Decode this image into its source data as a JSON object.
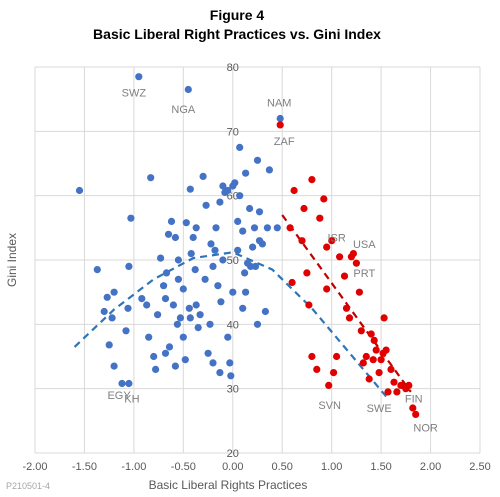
{
  "chart_data": {
    "type": "scatter",
    "title": "Figure 4",
    "subtitle": "Basic Liberal Right Practices vs. Gini Index",
    "xlabel": "Basic Liberal Rights Practices",
    "ylabel": "Gini Index",
    "xlim": [
      -2.0,
      2.5
    ],
    "ylim": [
      20,
      80
    ],
    "x_ticks": [
      -2.0,
      -1.5,
      -1.0,
      -0.5,
      0.0,
      0.5,
      1.0,
      1.5,
      2.0,
      2.5
    ],
    "x_tick_labels": [
      "-2.00",
      "-1.50",
      "-1.00",
      "-0.50",
      "0.00",
      "0.50",
      "1.00",
      "1.50",
      "2.00",
      "2.50"
    ],
    "y_ticks": [
      20,
      30,
      40,
      50,
      60,
      70,
      80
    ],
    "y_tick_labels": [
      "20",
      "30",
      "40",
      "50",
      "60",
      "70",
      "80"
    ],
    "grid": true,
    "legend": "none",
    "colors": {
      "blue": "#4472C4",
      "red": "#E00000",
      "blue_trend": "#2E75B6",
      "red_trend": "#C00000"
    },
    "series": [
      {
        "color": "blue",
        "points": [
          [
            -1.55,
            60.8
          ],
          [
            -1.37,
            48.5
          ],
          [
            -1.3,
            42.0
          ],
          [
            -1.27,
            44.2
          ],
          [
            -1.2,
            45.0
          ],
          [
            -1.22,
            41.0
          ],
          [
            -1.25,
            36.8
          ],
          [
            -1.2,
            33.5
          ],
          [
            -1.12,
            30.8
          ],
          [
            -1.05,
            30.8
          ],
          [
            -1.08,
            39.0
          ],
          [
            -1.06,
            42.5
          ],
          [
            -1.05,
            49.0
          ],
          [
            -1.03,
            56.5
          ],
          [
            -0.95,
            78.5
          ],
          [
            -0.92,
            44.0
          ],
          [
            -0.87,
            43.0
          ],
          [
            -0.85,
            38.0
          ],
          [
            -0.83,
            62.8
          ],
          [
            -0.8,
            35.0
          ],
          [
            -0.78,
            33.0
          ],
          [
            -0.76,
            41.5
          ],
          [
            -0.73,
            50.3
          ],
          [
            -0.7,
            46.0
          ],
          [
            -0.68,
            44.0
          ],
          [
            -0.68,
            35.5
          ],
          [
            -0.67,
            48.0
          ],
          [
            -0.65,
            54.0
          ],
          [
            -0.64,
            36.5
          ],
          [
            -0.62,
            56.0
          ],
          [
            -0.6,
            43.0
          ],
          [
            -0.58,
            53.5
          ],
          [
            -0.58,
            33.5
          ],
          [
            -0.56,
            40.0
          ],
          [
            -0.55,
            47.0
          ],
          [
            -0.55,
            50.0
          ],
          [
            -0.53,
            41.0
          ],
          [
            -0.5,
            45.5
          ],
          [
            -0.5,
            38.0
          ],
          [
            -0.48,
            34.5
          ],
          [
            -0.47,
            55.8
          ],
          [
            -0.45,
            76.5
          ],
          [
            -0.44,
            42.5
          ],
          [
            -0.43,
            41.0
          ],
          [
            -0.43,
            61.0
          ],
          [
            -0.42,
            51.0
          ],
          [
            -0.4,
            53.5
          ],
          [
            -0.38,
            48.5
          ],
          [
            -0.37,
            43.0
          ],
          [
            -0.37,
            55.0
          ],
          [
            -0.35,
            39.5
          ],
          [
            -0.33,
            41.5
          ],
          [
            -0.3,
            63.0
          ],
          [
            -0.28,
            47.0
          ],
          [
            -0.27,
            58.5
          ],
          [
            -0.25,
            35.5
          ],
          [
            -0.23,
            40.0
          ],
          [
            -0.22,
            52.5
          ],
          [
            -0.2,
            49.0
          ],
          [
            -0.2,
            34.0
          ],
          [
            -0.18,
            51.5
          ],
          [
            -0.17,
            55.0
          ],
          [
            -0.15,
            46.0
          ],
          [
            -0.13,
            59.0
          ],
          [
            -0.13,
            32.5
          ],
          [
            -0.12,
            43.5
          ],
          [
            -0.1,
            50.0
          ],
          [
            -0.1,
            61.5
          ],
          [
            -0.08,
            60.5
          ],
          [
            -0.05,
            60.8
          ],
          [
            -0.05,
            38.0
          ],
          [
            -0.03,
            34.0
          ],
          [
            -0.02,
            32.0
          ],
          [
            0.0,
            45.0
          ],
          [
            0.0,
            61.5
          ],
          [
            0.02,
            62.0
          ],
          [
            0.05,
            51.5
          ],
          [
            0.05,
            56.0
          ],
          [
            0.07,
            67.5
          ],
          [
            0.07,
            60.0
          ],
          [
            0.1,
            42.5
          ],
          [
            0.1,
            54.5
          ],
          [
            0.12,
            48.0
          ],
          [
            0.13,
            63.5
          ],
          [
            0.13,
            45.0
          ],
          [
            0.15,
            49.5
          ],
          [
            0.17,
            58.0
          ],
          [
            0.18,
            49.0
          ],
          [
            0.2,
            52.0
          ],
          [
            0.22,
            55.0
          ],
          [
            0.23,
            49.0
          ],
          [
            0.25,
            65.5
          ],
          [
            0.25,
            40.0
          ],
          [
            0.27,
            57.5
          ],
          [
            0.27,
            53.0
          ],
          [
            0.3,
            52.5
          ],
          [
            0.33,
            42.0
          ],
          [
            0.35,
            55.0
          ],
          [
            0.37,
            64.0
          ],
          [
            0.45,
            55.0
          ],
          [
            0.48,
            72.0
          ]
        ]
      },
      {
        "color": "red",
        "points": [
          [
            0.48,
            71.0
          ],
          [
            0.58,
            55.0
          ],
          [
            0.6,
            46.5
          ],
          [
            0.62,
            60.8
          ],
          [
            0.7,
            53.0
          ],
          [
            0.72,
            58.0
          ],
          [
            0.75,
            48.0
          ],
          [
            0.77,
            43.0
          ],
          [
            0.8,
            62.5
          ],
          [
            0.8,
            35.0
          ],
          [
            0.85,
            33.0
          ],
          [
            0.88,
            56.5
          ],
          [
            0.92,
            59.5
          ],
          [
            0.95,
            52.0
          ],
          [
            0.95,
            45.5
          ],
          [
            0.97,
            30.5
          ],
          [
            1.0,
            53.0
          ],
          [
            1.02,
            32.5
          ],
          [
            1.05,
            35.0
          ],
          [
            1.08,
            50.5
          ],
          [
            1.13,
            47.5
          ],
          [
            1.15,
            42.5
          ],
          [
            1.18,
            41.0
          ],
          [
            1.2,
            50.5
          ],
          [
            1.22,
            51.0
          ],
          [
            1.25,
            49.5
          ],
          [
            1.28,
            45.0
          ],
          [
            1.3,
            39.0
          ],
          [
            1.32,
            34.0
          ],
          [
            1.35,
            35.0
          ],
          [
            1.38,
            31.5
          ],
          [
            1.4,
            38.5
          ],
          [
            1.42,
            34.5
          ],
          [
            1.43,
            37.5
          ],
          [
            1.45,
            36.0
          ],
          [
            1.48,
            32.5
          ],
          [
            1.5,
            34.5
          ],
          [
            1.52,
            35.5
          ],
          [
            1.53,
            41.0
          ],
          [
            1.55,
            36.0
          ],
          [
            1.57,
            29.5
          ],
          [
            1.6,
            33.0
          ],
          [
            1.63,
            31.0
          ],
          [
            1.66,
            29.5
          ],
          [
            1.7,
            30.5
          ],
          [
            1.75,
            30.0
          ],
          [
            1.78,
            30.5
          ],
          [
            1.82,
            27.0
          ],
          [
            1.85,
            26.0
          ]
        ]
      }
    ],
    "trendlines": [
      {
        "color": "blue_trend",
        "type": "quadratic",
        "points": [
          [
            -1.6,
            36.5
          ],
          [
            -1.2,
            42.3
          ],
          [
            -0.8,
            47.0
          ],
          [
            -0.4,
            50.3
          ],
          [
            0.0,
            51.2
          ],
          [
            0.4,
            48.5
          ],
          [
            0.8,
            42.5
          ],
          [
            1.2,
            35.2
          ],
          [
            1.55,
            28.8
          ]
        ]
      },
      {
        "color": "red_trend",
        "type": "linear",
        "points": [
          [
            0.5,
            57.0
          ],
          [
            1.8,
            29.5
          ]
        ]
      }
    ],
    "annotations": [
      {
        "text": "SWZ",
        "x": -1.0,
        "y": 76.0
      },
      {
        "text": "NGA",
        "x": -0.5,
        "y": 73.5
      },
      {
        "text": "NAM",
        "x": 0.47,
        "y": 74.5
      },
      {
        "text": "ZAF",
        "x": 0.52,
        "y": 68.5
      },
      {
        "text": "ISR",
        "x": 1.05,
        "y": 53.5
      },
      {
        "text": "USA",
        "x": 1.33,
        "y": 52.5
      },
      {
        "text": "PRT",
        "x": 1.33,
        "y": 48.0
      },
      {
        "text": "EGY",
        "x": -1.15,
        "y": 29.0
      },
      {
        "text": "KH",
        "x": -1.02,
        "y": 28.5
      },
      {
        "text": "SVN",
        "x": 0.98,
        "y": 27.5
      },
      {
        "text": "SWE",
        "x": 1.48,
        "y": 27.0
      },
      {
        "text": "FIN",
        "x": 1.83,
        "y": 28.5
      },
      {
        "text": "NOR",
        "x": 1.95,
        "y": 24.0
      }
    ],
    "source_code": "P210501-4"
  }
}
